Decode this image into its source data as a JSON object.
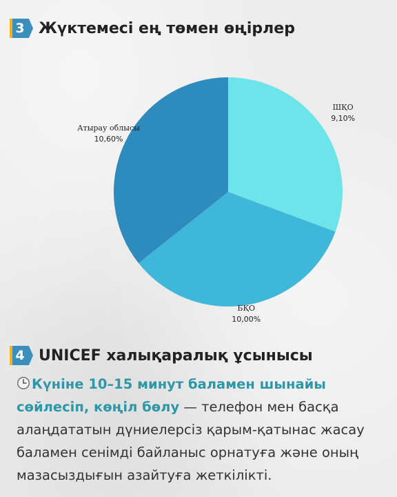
{
  "section3": {
    "number": "3",
    "title": "Жүктемесі ең төмен өңірлер"
  },
  "chart_data": {
    "type": "pie",
    "title": "",
    "slices": [
      {
        "label": "ШҚО",
        "value_label": "9,10%",
        "value": 9.1,
        "color": "#6de3ea"
      },
      {
        "label": "БҚО",
        "value_label": "10,00%",
        "value": 10.0,
        "color": "#3fb7d9"
      },
      {
        "label": "Атырау облысы",
        "value_label": "10,60%",
        "value": 10.6,
        "color": "#2e8bbd"
      }
    ],
    "start_angle_deg": 0,
    "direction": "clockwise",
    "legend": "none"
  },
  "section4": {
    "number": "4",
    "title": "UNICEF халықаралық ұсынысы"
  },
  "recommendation": {
    "icon": "clock-icon",
    "highlight": "Күніне 10–15 минут баламен шынайы сөйлесіп, көңіл бөлу",
    "rest": " — телефон мен басқа алаңдататын дүниелерсіз қарым-қатынас жасау баламен сенімді байланыс орнатуға және оның мазасыздығын азайтуға жеткілікті."
  }
}
